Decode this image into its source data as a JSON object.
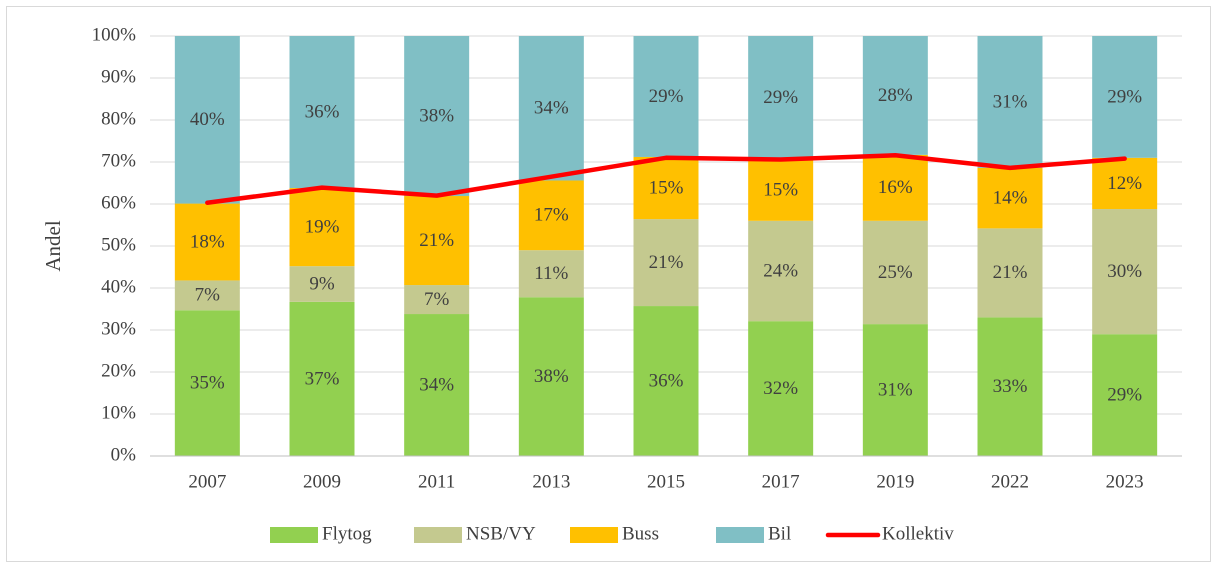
{
  "chart_data": {
    "type": "stacked-bar-line",
    "y_axis_label": "Andel",
    "categories": [
      "2007",
      "2009",
      "2011",
      "2013",
      "2015",
      "2017",
      "2019",
      "2022",
      "2023"
    ],
    "series": [
      {
        "name": "Flytog",
        "color": "#92d050",
        "values": [
          34.7,
          36.7,
          33.8,
          37.8,
          35.7,
          32.1,
          31.4,
          33.0,
          29.0
        ],
        "value_labels": [
          "35%",
          "37%",
          "34%",
          "38%",
          "36%",
          "32%",
          "31%",
          "33%",
          "29%"
        ]
      },
      {
        "name": "NSB/VY",
        "color": "#c4c98f",
        "values": [
          7.1,
          8.5,
          6.9,
          11.2,
          20.7,
          23.9,
          24.6,
          21.2,
          29.8
        ],
        "value_labels": [
          "7%",
          "9%",
          "7%",
          "11%",
          "21%",
          "24%",
          "25%",
          "21%",
          "30%"
        ]
      },
      {
        "name": "Buss",
        "color": "#ffc000",
        "values": [
          18.3,
          18.6,
          21.2,
          16.6,
          14.8,
          14.7,
          15.7,
          14.4,
          12.2
        ],
        "value_labels": [
          "18%",
          "19%",
          "21%",
          "17%",
          "15%",
          "15%",
          "16%",
          "14%",
          "12%"
        ]
      },
      {
        "name": "Bil",
        "color": "#80bfc5",
        "values": [
          39.9,
          36.2,
          38.1,
          34.4,
          28.8,
          29.3,
          28.3,
          31.4,
          29.0
        ],
        "value_labels": [
          "40%",
          "36%",
          "38%",
          "34%",
          "29%",
          "29%",
          "28%",
          "31%",
          "29%"
        ]
      }
    ],
    "line": {
      "name": "Kollektiv",
      "color": "#ff0000",
      "values": [
        60.3,
        63.9,
        62.0,
        66.5,
        71.0,
        70.6,
        71.6,
        68.6,
        70.8
      ]
    },
    "ylim": [
      0,
      100
    ],
    "yticks": [
      {
        "value": 0,
        "label": "0%"
      },
      {
        "value": 10,
        "label": "10%"
      },
      {
        "value": 20,
        "label": "20%"
      },
      {
        "value": 30,
        "label": "30%"
      },
      {
        "value": 40,
        "label": "40%"
      },
      {
        "value": 50,
        "label": "50%"
      },
      {
        "value": 60,
        "label": "60%"
      },
      {
        "value": 70,
        "label": "70%"
      },
      {
        "value": 80,
        "label": "80%"
      },
      {
        "value": 90,
        "label": "90%"
      },
      {
        "value": 100,
        "label": "100%"
      }
    ],
    "grid": true,
    "legend": "bottom"
  }
}
